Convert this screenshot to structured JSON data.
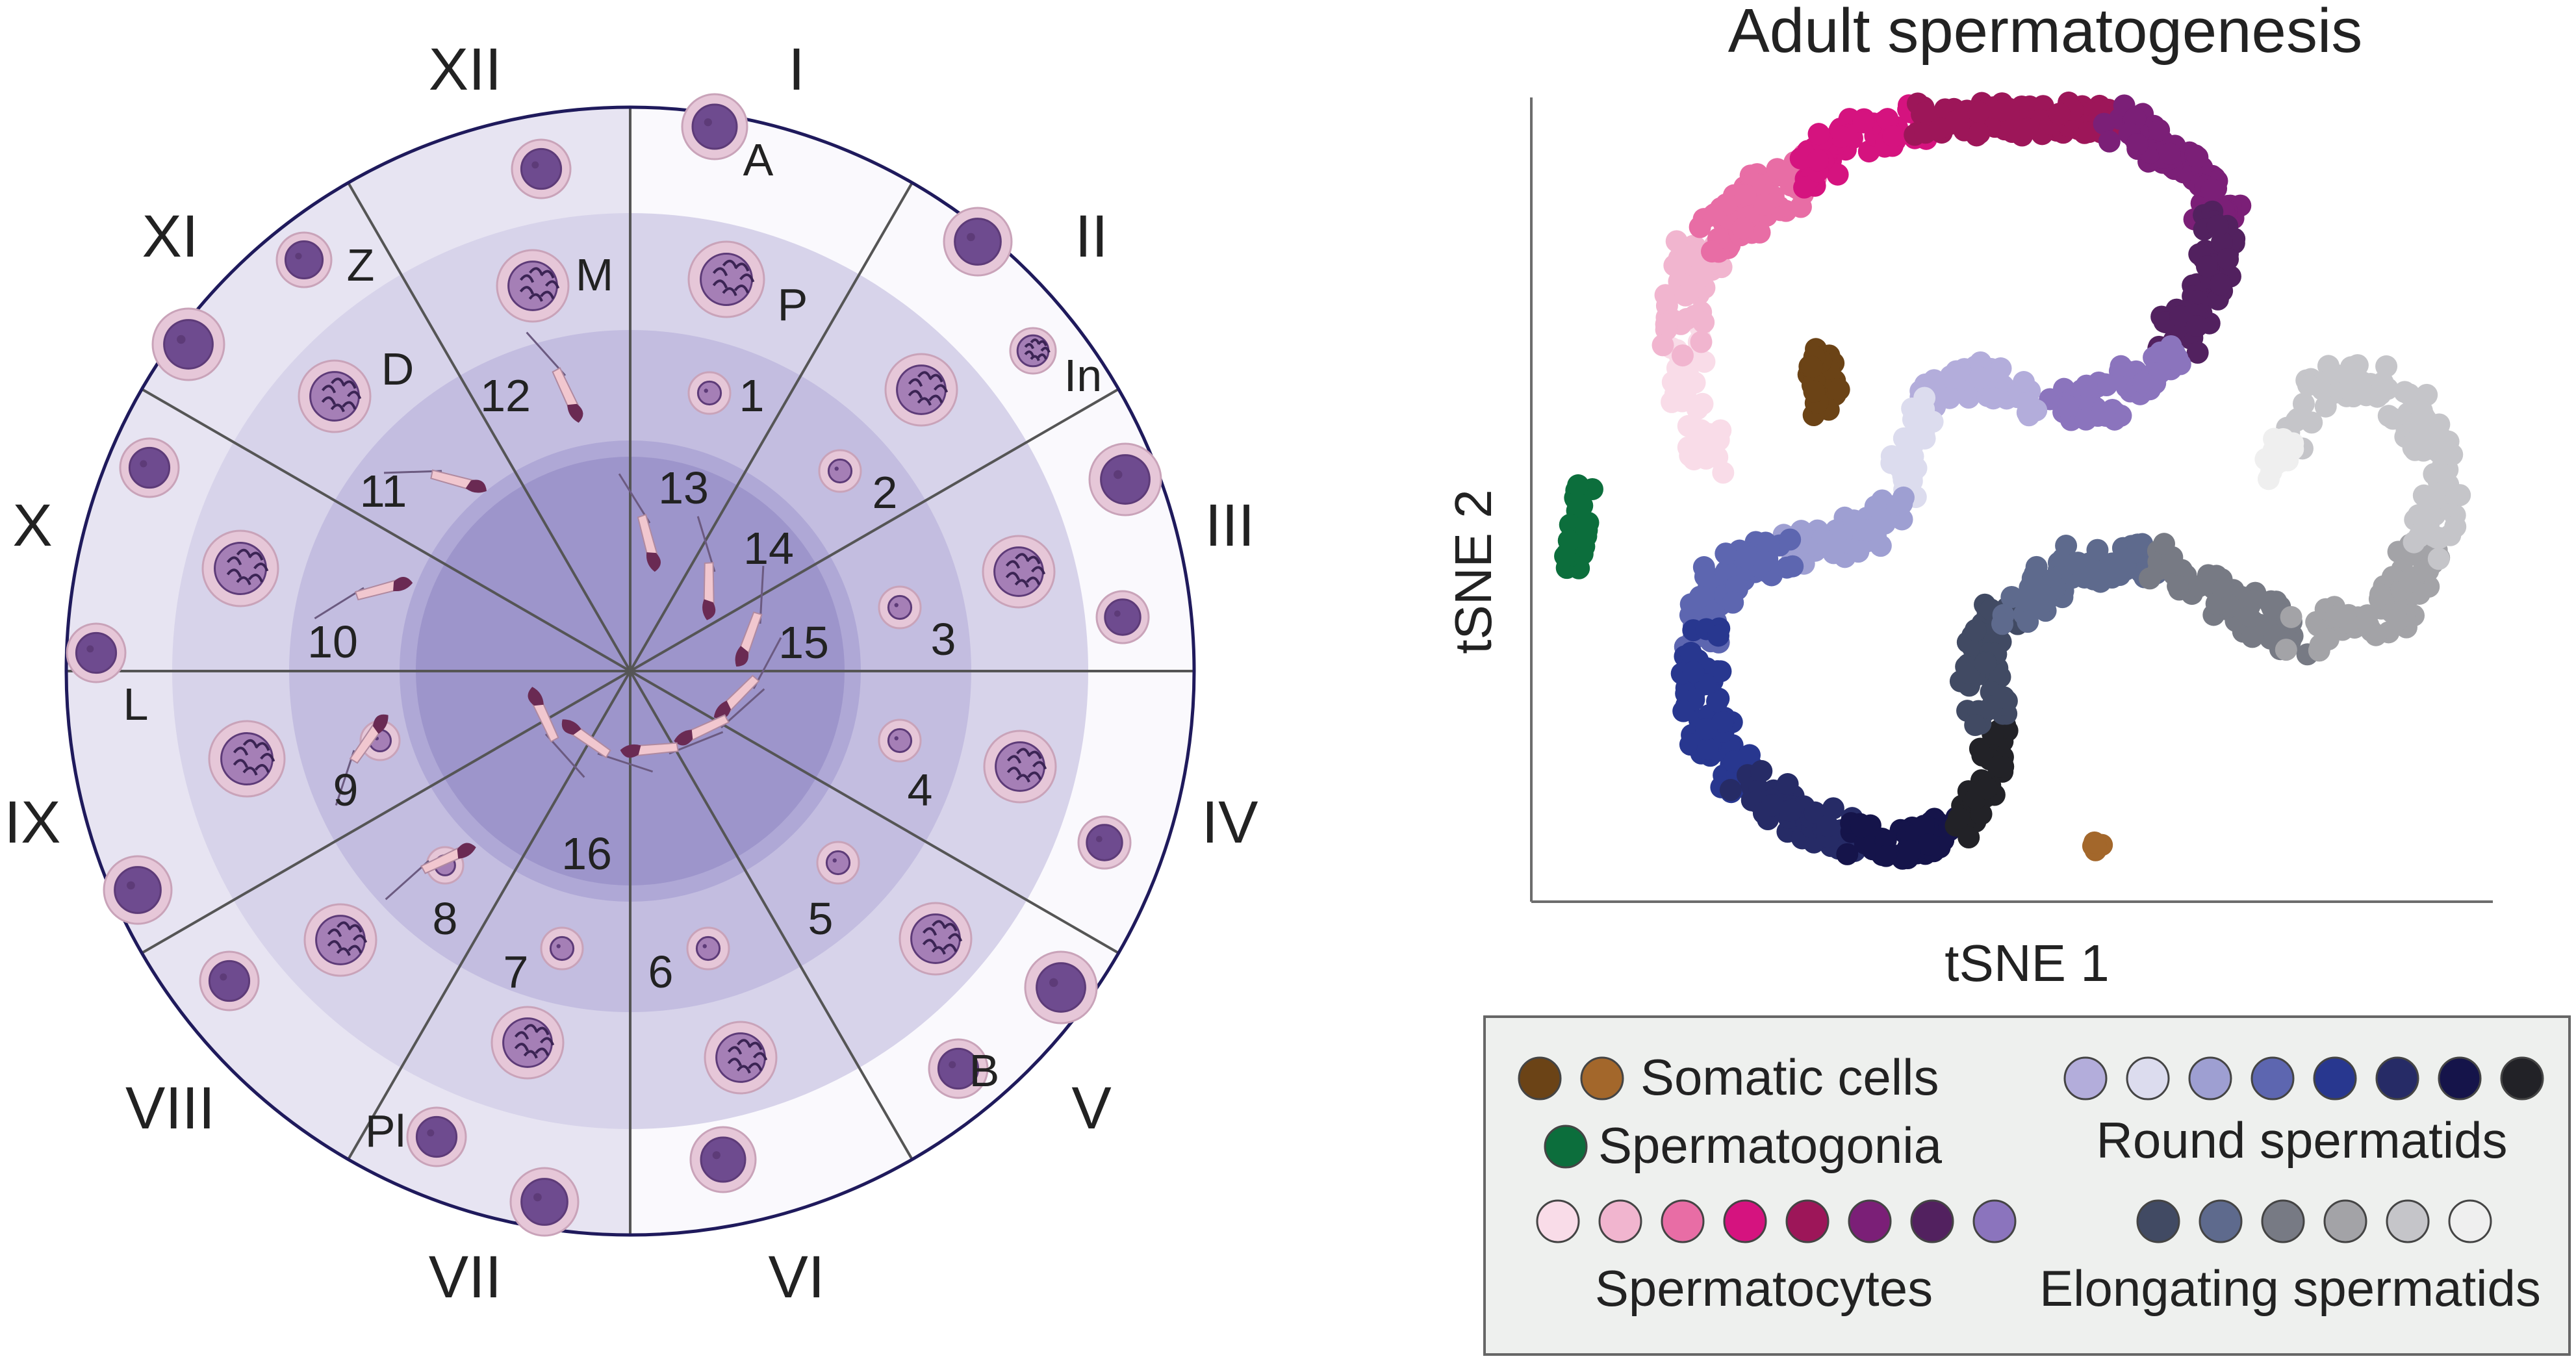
{
  "cycle": {
    "stage_labels": [
      "I",
      "II",
      "III",
      "IV",
      "V",
      "VI",
      "VII",
      "VIII",
      "IX",
      "X",
      "XI",
      "XII"
    ],
    "cell_letters": [
      "A",
      "In",
      "B",
      "Pl",
      "L",
      "Z",
      "D",
      "M",
      "P"
    ],
    "step_numbers": [
      "1",
      "2",
      "3",
      "4",
      "5",
      "6",
      "7",
      "8",
      "9",
      "10",
      "11",
      "12",
      "13",
      "14",
      "15",
      "16"
    ],
    "colors": {
      "outer_ring": "#f3f1f9",
      "ring2": "#d7d3ea",
      "ring3": "#c3bde0",
      "ring4": "#afa8d6",
      "core": "#9d95cb",
      "border": "#1f1a5c",
      "spoke": "#555555",
      "cell_fill": "#e6c7d8",
      "nucleus": "#a57fb6",
      "nucleus_dark": "#5d3b78"
    }
  },
  "tsne": {
    "title": "Adult spermatogenesis",
    "xlabel": "tSNE 1",
    "ylabel": "tSNE 2"
  },
  "legend": {
    "somatic": {
      "label": "Somatic cells",
      "colors": [
        "#6b4316",
        "#a3672b"
      ]
    },
    "spermatogonia": {
      "label": "Spermatogonia",
      "colors": [
        "#0c6e3c"
      ]
    },
    "spermatocytes": {
      "label": "Spermatocytes",
      "colors": [
        "#f9dce8",
        "#f1b5cf",
        "#e86da5",
        "#d5137f",
        "#9d1659",
        "#7b1f77",
        "#52215f",
        "#8b74bd"
      ]
    },
    "round": {
      "label": "Round spermatids",
      "colors": [
        "#b3addb",
        "#dcdcee",
        "#9e9fd2",
        "#5d66b0",
        "#28378f",
        "#262b66",
        "#15144a",
        "#222227"
      ]
    },
    "elongating": {
      "label": "Elongating spermatids",
      "colors": [
        "#414a63",
        "#5e6a8d",
        "#777a84",
        "#a3a3a7",
        "#c5c5c9",
        "#efefef"
      ]
    }
  }
}
